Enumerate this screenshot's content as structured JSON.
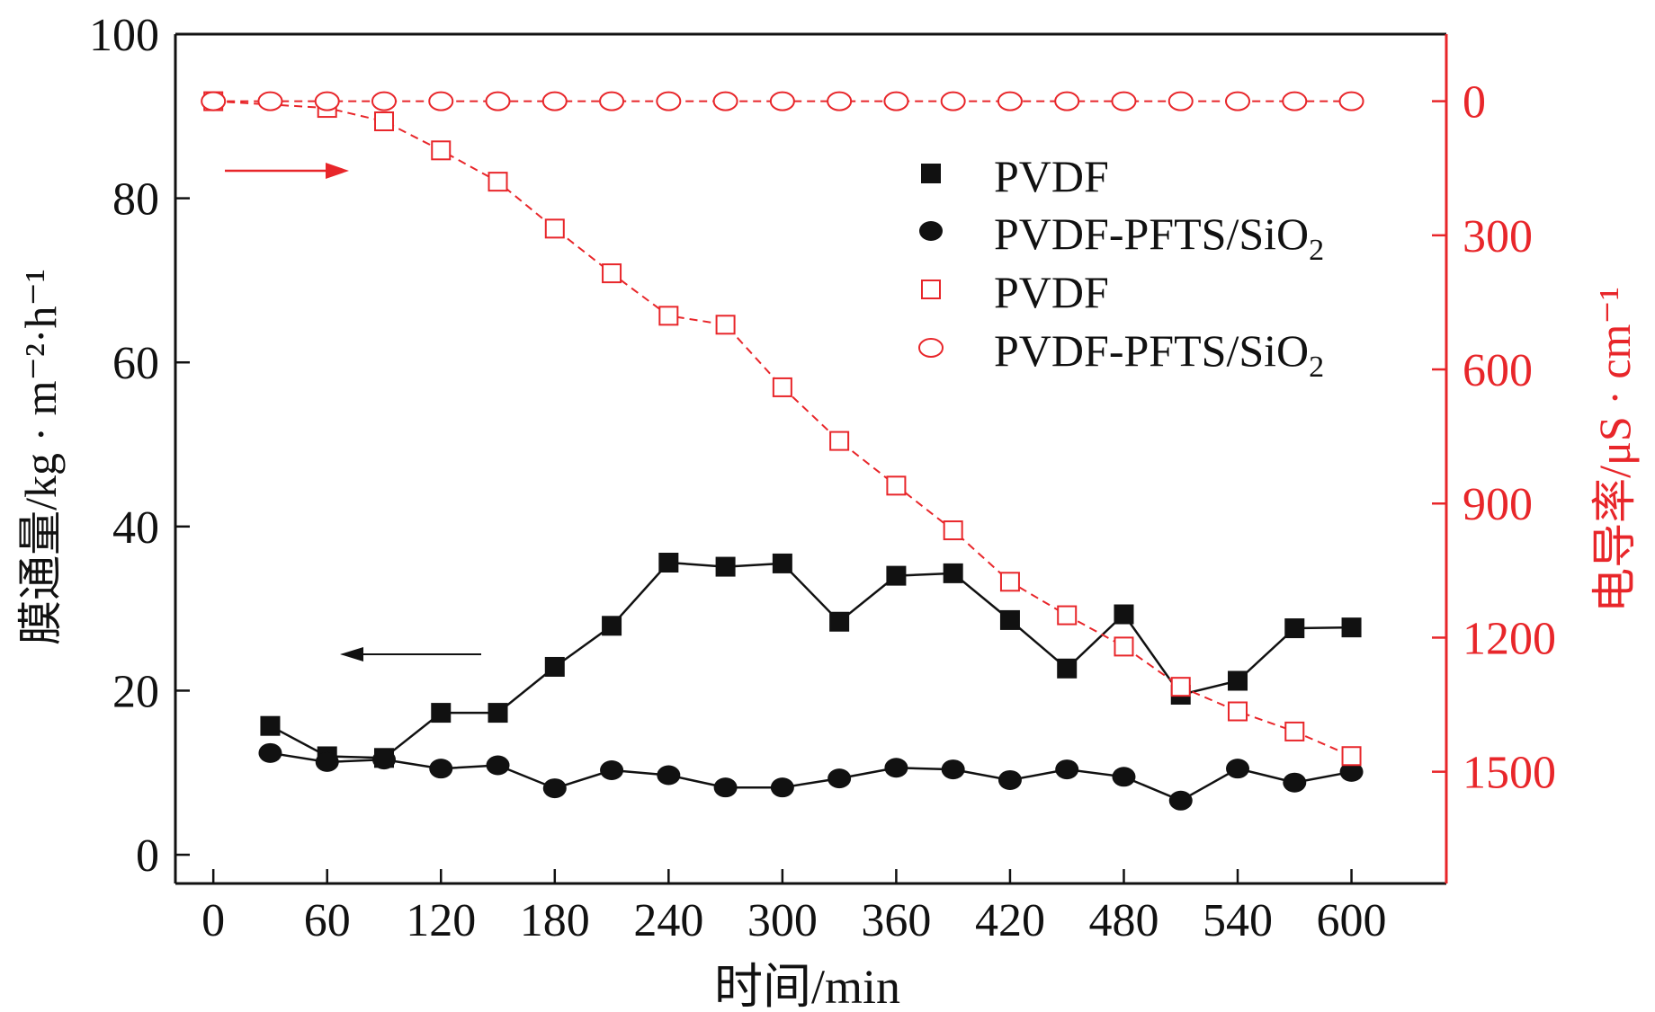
{
  "chart_data": {
    "type": "line",
    "x_axis": {
      "label": "时间/min",
      "range": [
        -20,
        650
      ],
      "ticks": [
        0,
        60,
        120,
        180,
        240,
        300,
        360,
        420,
        480,
        540,
        600
      ]
    },
    "y_axis_left": {
      "label": "膜通量/kg · m⁻²·h⁻¹",
      "range": [
        -3.5,
        100
      ],
      "ticks": [
        0,
        20,
        40,
        60,
        80,
        100
      ],
      "color": "#111111"
    },
    "y_axis_right": {
      "label": "电导率/μS · cm⁻¹",
      "range_top_to_bottom": [
        -150,
        1750
      ],
      "ticks": [
        0,
        300,
        600,
        900,
        1200,
        1500
      ],
      "color": "#e8262a"
    },
    "series": [
      {
        "name": "PVDF",
        "axis": "left",
        "marker": "filled-square",
        "color": "#111111",
        "x": [
          30,
          60,
          90,
          120,
          150,
          180,
          210,
          240,
          270,
          300,
          330,
          360,
          390,
          420,
          450,
          480,
          510,
          540,
          570,
          600
        ],
        "y": [
          15.7,
          12.0,
          11.8,
          17.3,
          17.3,
          22.9,
          27.9,
          35.6,
          35.1,
          35.5,
          28.4,
          34.0,
          34.3,
          28.6,
          22.7,
          29.3,
          19.5,
          21.2,
          27.6,
          27.7
        ]
      },
      {
        "name": "PVDF-PFTS/SiO₂",
        "axis": "left",
        "marker": "filled-circle",
        "color": "#111111",
        "x": [
          30,
          60,
          90,
          120,
          150,
          180,
          210,
          240,
          270,
          300,
          330,
          360,
          390,
          420,
          450,
          480,
          510,
          540,
          570,
          600
        ],
        "y": [
          12.4,
          11.3,
          11.6,
          10.5,
          10.9,
          8.1,
          10.3,
          9.7,
          8.2,
          8.2,
          9.3,
          10.6,
          10.4,
          9.1,
          10.4,
          9.5,
          6.6,
          10.5,
          8.8,
          10.1
        ]
      },
      {
        "name": "PVDF",
        "axis": "right",
        "marker": "open-square",
        "color": "#e8262a",
        "x": [
          0,
          60,
          90,
          120,
          150,
          180,
          210,
          240,
          270,
          300,
          330,
          360,
          390,
          420,
          450,
          480,
          510,
          540,
          570,
          600
        ],
        "y": [
          0,
          15,
          45,
          110,
          180,
          285,
          385,
          480,
          500,
          640,
          760,
          860,
          960,
          1075,
          1150,
          1220,
          1310,
          1365,
          1410,
          1465
        ]
      },
      {
        "name": "PVDF-PFTS/SiO₂",
        "axis": "right",
        "marker": "open-circle",
        "color": "#e8262a",
        "x": [
          0,
          30,
          60,
          90,
          120,
          150,
          180,
          210,
          240,
          270,
          300,
          330,
          360,
          390,
          420,
          450,
          480,
          510,
          540,
          570,
          600
        ],
        "y": [
          0,
          0,
          0,
          0,
          0,
          0,
          0,
          0,
          0,
          0,
          0,
          0,
          0,
          0,
          0,
          0,
          0,
          0,
          0,
          0,
          0
        ]
      }
    ],
    "legend": {
      "placement": "upper-right",
      "entries": [
        {
          "prefix": "PVDF",
          "sub": "",
          "marker": "filled-square",
          "color": "#111111"
        },
        {
          "prefix": "PVDF-PFTS/SiO",
          "sub": "2",
          "marker": "filled-circle",
          "color": "#111111"
        },
        {
          "prefix": "PVDF",
          "sub": "",
          "marker": "open-square",
          "color": "#e8262a"
        },
        {
          "prefix": "PVDF-PFTS/SiO",
          "sub": "2",
          "marker": "open-circle",
          "color": "#e8262a"
        }
      ]
    },
    "annotations": [
      {
        "type": "arrow",
        "direction": "right",
        "meaning": "curves read on right axis",
        "color": "#e8262a"
      },
      {
        "type": "arrow",
        "direction": "left",
        "meaning": "curves read on left axis",
        "color": "#111111"
      }
    ]
  }
}
